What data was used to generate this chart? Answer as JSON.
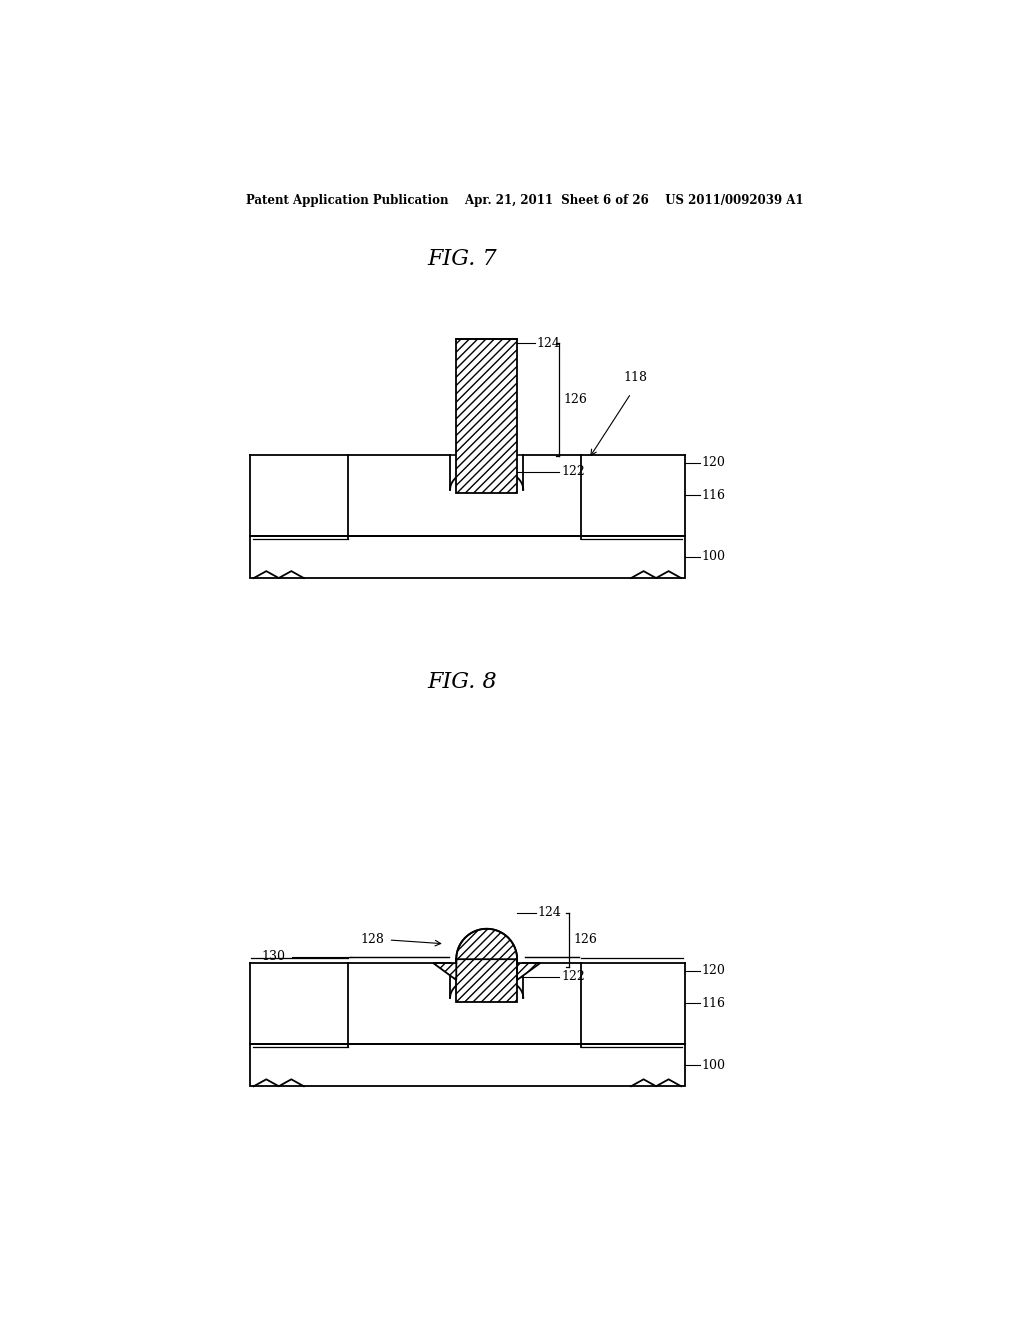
{
  "bg_color": "#ffffff",
  "line_color": "#000000",
  "fig_width": 10.24,
  "fig_height": 13.2,
  "header": "Patent Application Publication    Apr. 21, 2011  Sheet 6 of 26    US 2011/0092039 A1",
  "fig7_title": "FIG. 7",
  "fig8_title": "FIG. 8",
  "lw": 1.3,
  "fs_label": 9.0,
  "fs_title": 16,
  "fs_header": 8.5
}
